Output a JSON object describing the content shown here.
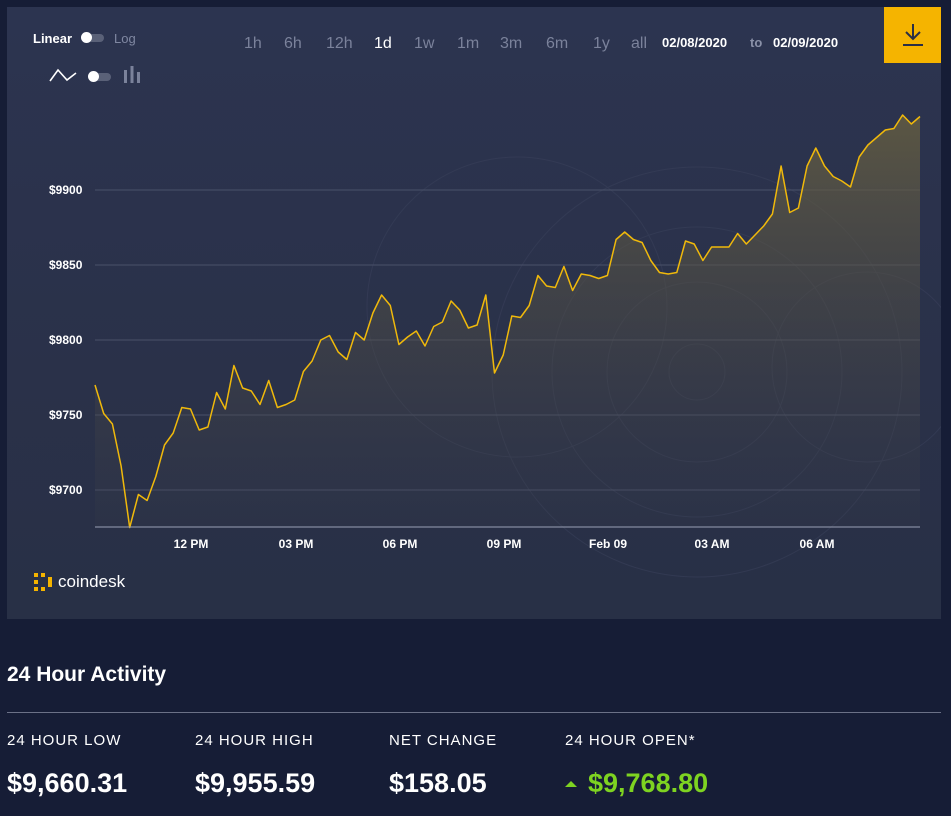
{
  "controls": {
    "scale_linear": "Linear",
    "scale_log": "Log",
    "ranges": [
      "1h",
      "6h",
      "12h",
      "1d",
      "1w",
      "1m",
      "3m",
      "6m",
      "1y",
      "all"
    ],
    "active_range": "1d",
    "date_from": "02/08/2020",
    "date_to_word": "to",
    "date_to": "02/09/2020"
  },
  "brand": {
    "name": "coindesk",
    "accent": "#f5b400"
  },
  "chart_data": {
    "type": "area",
    "ylim": [
      9675,
      9960
    ],
    "y_ticks": [
      9700,
      9750,
      9800,
      9850,
      9900
    ],
    "y_tick_labels": [
      "$9700",
      "$9750",
      "$9800",
      "$9850",
      "$9900"
    ],
    "x_tick_labels": [
      "12 PM",
      "03 PM",
      "06 PM",
      "09 PM",
      "Feb 09",
      "03 AM",
      "06 AM"
    ],
    "line_color": "#f0b90b",
    "series": [
      {
        "values": [
          9770,
          9751,
          9744,
          9716,
          9675,
          9697,
          9693,
          9709,
          9730,
          9738,
          9755,
          9754,
          9740,
          9742,
          9765,
          9754,
          9783,
          9768,
          9766,
          9757,
          9773,
          9755,
          9757,
          9760,
          9779,
          9786,
          9800,
          9803,
          9792,
          9787,
          9805,
          9800,
          9818,
          9830,
          9823,
          9797,
          9802,
          9806,
          9796,
          9809,
          9812,
          9826,
          9820,
          9808,
          9810,
          9830,
          9778,
          9790,
          9816,
          9815,
          9823,
          9843,
          9836,
          9835,
          9849,
          9833,
          9844,
          9843,
          9841,
          9843,
          9867,
          9872,
          9867,
          9865,
          9853,
          9845,
          9844,
          9845,
          9866,
          9864,
          9853,
          9862,
          9862,
          9862,
          9871,
          9864,
          9870,
          9876,
          9884,
          9916,
          9885,
          9888,
          9916,
          9928,
          9916,
          9909,
          9906,
          9902,
          9922,
          9930,
          9935,
          9940,
          9941,
          9950,
          9944,
          9949
        ]
      }
    ]
  },
  "activity": {
    "title": "24 Hour Activity",
    "low_label": "24 HOUR LOW",
    "low_value": "$9,660.31",
    "high_label": "24 HOUR HIGH",
    "high_value": "$9,955.59",
    "change_label": "NET CHANGE",
    "change_value": "$158.05",
    "open_label": "24 HOUR OPEN*",
    "open_value": "$9,768.80",
    "up_color": "#7ed321"
  },
  "icons": {
    "line_chart": "line-chart-icon",
    "bar_chart": "bar-chart-icon",
    "download": "download-icon",
    "logo": "coindesk-logo-icon"
  }
}
